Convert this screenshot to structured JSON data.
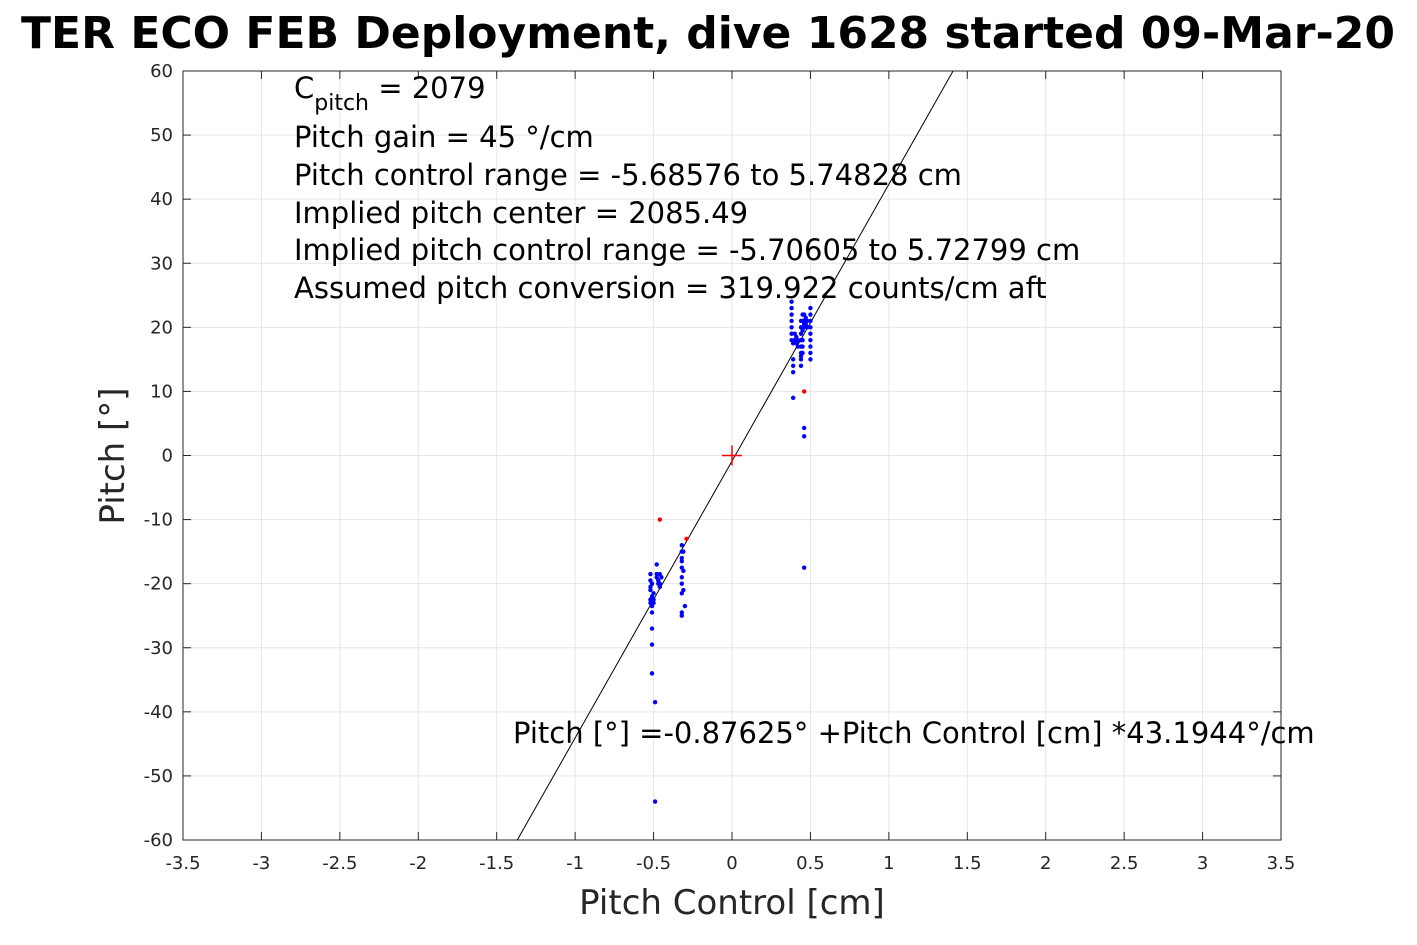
{
  "chart_data": {
    "type": "scatter",
    "title": "TER ECO FEB Deployment, dive 1628 started 09-Mar-20",
    "xlabel": "Pitch Control [cm]",
    "ylabel": "Pitch [°]",
    "xlim": [
      -3.5,
      3.5
    ],
    "ylim": [
      -60,
      60
    ],
    "xticks": [
      "-3.5",
      "-3",
      "-2.5",
      "-2",
      "-1.5",
      "-1",
      "-0.5",
      "0",
      "0.5",
      "1",
      "1.5",
      "2",
      "2.5",
      "3",
      "3.5"
    ],
    "yticks": [
      "60",
      "50",
      "40",
      "30",
      "20",
      "10",
      "0",
      "-10",
      "-20",
      "-30",
      "-40",
      "-50",
      "-60"
    ],
    "grid": true,
    "annotations": {
      "cpitch_symbol": "C",
      "cpitch_sub": "pitch",
      "cpitch_rest": " = 2079",
      "gain": "Pitch gain = 45 °/cm",
      "control_range": "Pitch control range = -5.68576 to 5.74828 cm",
      "implied_center": "Implied pitch center = 2085.49",
      "implied_range": "Implied pitch control range = -5.70605 to 5.72799 cm",
      "conversion": "Assumed pitch conversion = 319.922 counts/cm aft",
      "fit": "Pitch [°] =-0.87625° +Pitch Control [cm] *43.1944°/cm"
    },
    "fit_line": {
      "intercept": -0.87625,
      "slope": 43.1944,
      "color": "#000000"
    },
    "center_marker": {
      "x": 0,
      "y": 0,
      "color": "#ff0000"
    },
    "series": [
      {
        "color": "#0000ff",
        "points": [
          [
            0.38,
            24
          ],
          [
            0.38,
            23
          ],
          [
            0.38,
            22
          ],
          [
            0.38,
            21
          ],
          [
            0.38,
            20
          ],
          [
            0.38,
            19
          ],
          [
            0.38,
            18
          ],
          [
            0.39,
            17.5
          ],
          [
            0.39,
            15
          ],
          [
            0.39,
            14
          ],
          [
            0.39,
            13
          ],
          [
            0.39,
            9
          ],
          [
            0.4,
            19
          ],
          [
            0.4,
            18
          ],
          [
            0.41,
            18.5
          ],
          [
            0.41,
            17.5
          ],
          [
            0.42,
            18
          ],
          [
            0.42,
            17
          ],
          [
            0.44,
            21
          ],
          [
            0.44,
            20
          ],
          [
            0.44,
            19
          ],
          [
            0.44,
            18
          ],
          [
            0.44,
            17
          ],
          [
            0.44,
            16
          ],
          [
            0.44,
            15.5
          ],
          [
            0.44,
            15
          ],
          [
            0.44,
            14
          ],
          [
            0.45,
            22
          ],
          [
            0.45,
            21
          ],
          [
            0.45,
            20
          ],
          [
            0.45,
            19.5
          ],
          [
            0.45,
            18
          ],
          [
            0.45,
            17
          ],
          [
            0.45,
            16
          ],
          [
            0.46,
            22
          ],
          [
            0.46,
            21
          ],
          [
            0.46,
            20.5
          ],
          [
            0.46,
            20
          ],
          [
            0.46,
            4.3
          ],
          [
            0.46,
            3
          ],
          [
            0.46,
            -17.5
          ],
          [
            0.47,
            21.5
          ],
          [
            0.47,
            20.5
          ],
          [
            0.48,
            21
          ],
          [
            0.48,
            20
          ],
          [
            0.5,
            23
          ],
          [
            0.5,
            22
          ],
          [
            0.5,
            21
          ],
          [
            0.5,
            20
          ],
          [
            0.5,
            19
          ],
          [
            0.5,
            18
          ],
          [
            0.5,
            17
          ],
          [
            0.5,
            16
          ],
          [
            0.5,
            15
          ],
          [
            -0.52,
            -18.5
          ],
          [
            -0.52,
            -19.5
          ],
          [
            -0.52,
            -20.5
          ],
          [
            -0.52,
            -21
          ],
          [
            -0.52,
            -22.5
          ],
          [
            -0.52,
            -23
          ],
          [
            -0.51,
            -20
          ],
          [
            -0.51,
            -22
          ],
          [
            -0.51,
            -23.5
          ],
          [
            -0.51,
            -24.5
          ],
          [
            -0.51,
            -27
          ],
          [
            -0.51,
            -29.5
          ],
          [
            -0.51,
            -34
          ],
          [
            -0.5,
            -21.5
          ],
          [
            -0.5,
            -22.5
          ],
          [
            -0.5,
            -23
          ],
          [
            -0.49,
            -38.5
          ],
          [
            -0.49,
            -54
          ],
          [
            -0.48,
            -17
          ],
          [
            -0.48,
            -18.5
          ],
          [
            -0.48,
            -19
          ],
          [
            -0.47,
            -19.5
          ],
          [
            -0.47,
            -20
          ],
          [
            -0.46,
            -18.5
          ],
          [
            -0.46,
            -20
          ],
          [
            -0.46,
            -20.5
          ],
          [
            -0.45,
            -19
          ],
          [
            -0.32,
            -14
          ],
          [
            -0.32,
            -15
          ],
          [
            -0.32,
            -16
          ],
          [
            -0.32,
            -16.5
          ],
          [
            -0.32,
            -17.5
          ],
          [
            -0.32,
            -19
          ],
          [
            -0.32,
            -20
          ],
          [
            -0.32,
            -21.5
          ],
          [
            -0.32,
            -24.5
          ],
          [
            -0.32,
            -25
          ],
          [
            -0.31,
            -15
          ],
          [
            -0.31,
            -18
          ],
          [
            -0.31,
            -21
          ],
          [
            -0.3,
            -23.5
          ]
        ]
      },
      {
        "color": "#ff0000",
        "points": [
          [
            0.46,
            10
          ],
          [
            -0.46,
            -10
          ],
          [
            -0.29,
            -13
          ]
        ]
      }
    ]
  }
}
